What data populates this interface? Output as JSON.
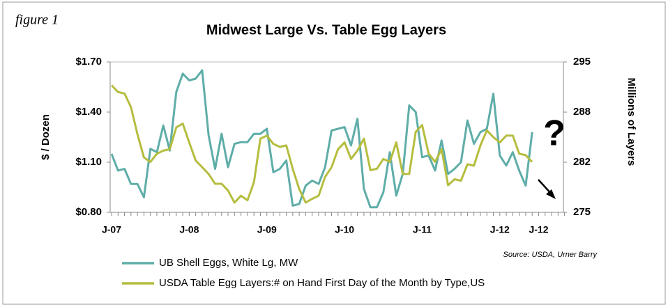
{
  "chart_data": {
    "type": "line",
    "annotations": {
      "figure": "figure 1",
      "question": "?",
      "source": "Source: USDA, Urner Barry"
    },
    "title": "Midwest Large Vs. Table Egg Layers",
    "y_label": "$ / Dozen",
    "y2_label": "Millions of Layers",
    "categories": [
      "J-07",
      null,
      null,
      null,
      null,
      null,
      null,
      null,
      null,
      null,
      null,
      null,
      "J-08",
      null,
      null,
      null,
      null,
      null,
      null,
      null,
      null,
      null,
      null,
      null,
      "J-09",
      null,
      null,
      null,
      null,
      null,
      null,
      null,
      null,
      null,
      null,
      null,
      "J-10",
      null,
      null,
      null,
      null,
      null,
      null,
      null,
      null,
      null,
      null,
      null,
      "J-11",
      null,
      null,
      null,
      null,
      null,
      null,
      null,
      null,
      null,
      null,
      null,
      "J-12",
      null,
      null,
      null,
      null,
      null,
      "J-12",
      null,
      null,
      null,
      null
    ],
    "ylim": [
      0.8,
      1.7
    ],
    "yticks": [
      {
        "value": 0.8,
        "label": "$0.80"
      },
      {
        "value": 1.1,
        "label": "$1.10"
      },
      {
        "value": 1.4,
        "label": "$1.40"
      },
      {
        "value": 1.7,
        "label": "$1.70"
      }
    ],
    "y2lim": [
      275,
      295
    ],
    "y2ticks": [
      275,
      {
        "value": 281.67,
        "label": "282"
      },
      {
        "value": 288.33,
        "label": "288"
      },
      295
    ],
    "grid": false,
    "series": [
      {
        "name": "UB Shell Eggs, White Lg, MW",
        "color": "#5fada8",
        "values": [
          1.15,
          1.05,
          1.06,
          0.97,
          0.97,
          0.89,
          1.18,
          1.16,
          1.32,
          1.17,
          1.52,
          1.63,
          1.59,
          1.6,
          1.65,
          1.26,
          1.06,
          1.27,
          1.07,
          1.21,
          1.22,
          1.22,
          1.27,
          1.27,
          1.3,
          1.04,
          1.06,
          1.11,
          0.84,
          0.85,
          0.96,
          0.99,
          0.97,
          1.07,
          1.29,
          1.3,
          1.31,
          1.2,
          1.36,
          0.94,
          0.83,
          0.83,
          0.92,
          1.16,
          0.9,
          1.03,
          1.44,
          1.4,
          1.13,
          1.14,
          1.05,
          1.23,
          1.03,
          1.06,
          1.1,
          1.35,
          1.21,
          1.28,
          1.3,
          1.51,
          1.14,
          1.08,
          1.16,
          1.05,
          0.96,
          1.28,
          null,
          null,
          null,
          null,
          null
        ]
      },
      {
        "name": "USDA Table Egg Layers:# on Hand First Day of the Month by Type,US",
        "color": "#b5bd3f",
        "axis": "y2",
        "values": [
          291.9,
          291.0,
          290.8,
          289.0,
          285.4,
          282.3,
          281.7,
          282.8,
          283.2,
          283.4,
          286.3,
          286.8,
          284.3,
          281.9,
          281.0,
          280.1,
          278.8,
          278.8,
          277.9,
          276.3,
          277.2,
          276.6,
          279.0,
          284.8,
          285.2,
          284.1,
          283.7,
          283.9,
          280.8,
          278.1,
          276.3,
          276.8,
          277.2,
          279.7,
          281.0,
          283.4,
          284.3,
          282.1,
          283.2,
          284.8,
          280.6,
          280.8,
          282.1,
          281.7,
          284.3,
          280.1,
          280.1,
          285.7,
          286.6,
          282.8,
          281.7,
          283.4,
          278.6,
          279.4,
          279.2,
          281.4,
          281.2,
          283.9,
          285.9,
          285.0,
          284.3,
          285.2,
          285.2,
          282.8,
          282.6,
          281.7,
          null,
          null,
          null,
          null,
          null
        ]
      }
    ]
  }
}
